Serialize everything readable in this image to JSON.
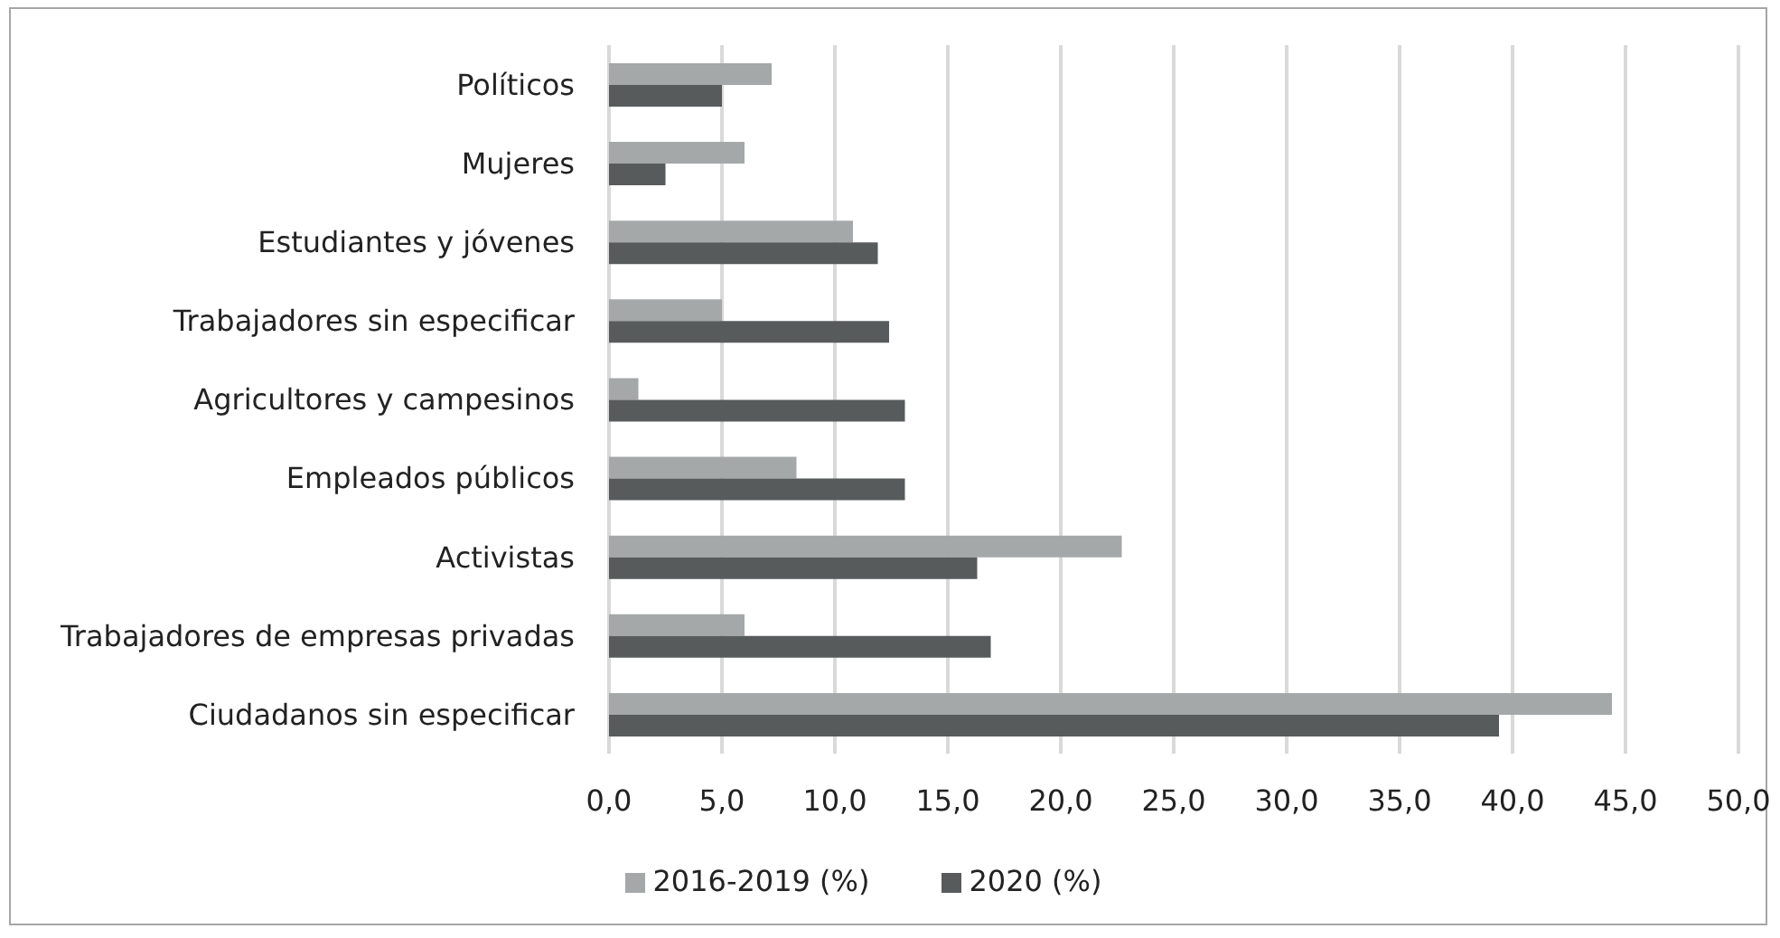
{
  "chart_data": {
    "type": "bar",
    "orientation": "horizontal",
    "categories": [
      "Políticos",
      "Mujeres",
      "Estudiantes y jóvenes",
      "Trabajadores sin especificar",
      "Agricultores y campesinos",
      "Empleados públicos",
      "Activistas",
      "Trabajadores de empresas privadas",
      "Ciudadanos sin especificar"
    ],
    "series": [
      {
        "name": "2016-2019 (%)",
        "color": "#a5a8a8",
        "values": [
          7.2,
          6.0,
          10.8,
          5.0,
          1.3,
          8.3,
          22.7,
          6.0,
          44.4
        ]
      },
      {
        "name": "2020 (%)",
        "color": "#575b5b",
        "values": [
          5.0,
          2.5,
          11.9,
          12.4,
          13.1,
          13.1,
          16.3,
          16.9,
          39.4
        ]
      }
    ],
    "xlim": [
      0,
      50
    ],
    "xticks": [
      {
        "value": 0,
        "label": "0,0"
      },
      {
        "value": 5,
        "label": "5,0"
      },
      {
        "value": 10,
        "label": "10,0"
      },
      {
        "value": 15,
        "label": "15,0"
      },
      {
        "value": 20,
        "label": "20,0"
      },
      {
        "value": 25,
        "label": "25,0"
      },
      {
        "value": 30,
        "label": "30,0"
      },
      {
        "value": 35,
        "label": "35,0"
      },
      {
        "value": 40,
        "label": "40,0"
      },
      {
        "value": 45,
        "label": "45,0"
      },
      {
        "value": 50,
        "label": "50,0"
      }
    ],
    "grid": "x",
    "legend": "bottom"
  }
}
